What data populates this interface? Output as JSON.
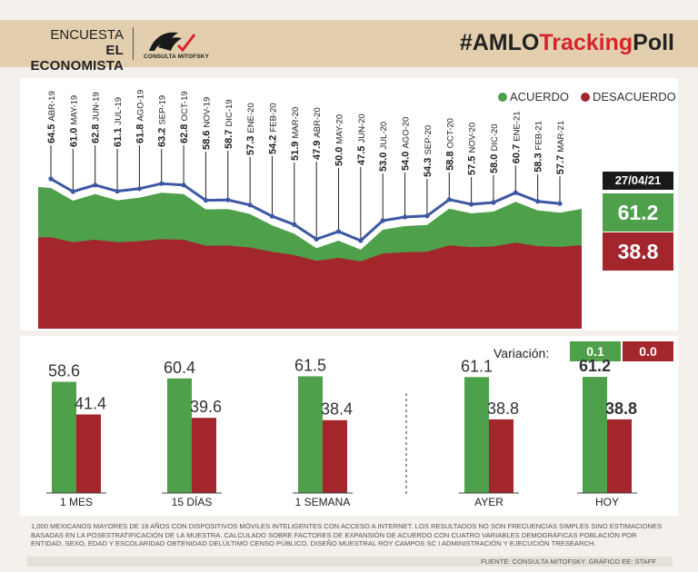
{
  "header": {
    "brand_line1": "ENCUESTA",
    "brand_line2": "EL ECONOMISTA",
    "logo_text": "CONSULTA MITOFSKY",
    "hashtag_prefix": "#AMLO",
    "hashtag_red": "Tracking",
    "hashtag_suffix": "Poll"
  },
  "legend": {
    "acuerdo": "ACUERDO",
    "desacuerdo": "DESACUERDO"
  },
  "colors": {
    "green": "#4fa04b",
    "red": "#a3262c",
    "line": "#3d57a3",
    "header_bg": "#e3cfae"
  },
  "current": {
    "date": "27/04/21",
    "acuerdo": "61.2",
    "desacuerdo": "38.8"
  },
  "variation": {
    "label": "Variación:",
    "acuerdo": "0.1",
    "desacuerdo": "0.0"
  },
  "chart_data": [
    {
      "type": "line",
      "series": [
        {
          "name": "ACUERDO",
          "points": [
            {
              "x": "ABR-19",
              "y": 64.5
            },
            {
              "x": "MAY-19",
              "y": 61.0
            },
            {
              "x": "JUN-19",
              "y": 62.8
            },
            {
              "x": "JUL-19",
              "y": 61.1
            },
            {
              "x": "AGO-19",
              "y": 61.8
            },
            {
              "x": "SEP-19",
              "y": 63.2
            },
            {
              "x": "OCT-19",
              "y": 62.8
            },
            {
              "x": "NOV-19",
              "y": 58.6
            },
            {
              "x": "DIC-19",
              "y": 58.7
            },
            {
              "x": "ENE-20",
              "y": 57.3
            },
            {
              "x": "FEB-20",
              "y": 54.2
            },
            {
              "x": "MAR-20",
              "y": 51.9
            },
            {
              "x": "ABR-20",
              "y": 47.9
            },
            {
              "x": "MAY-20",
              "y": 50.0
            },
            {
              "x": "JUN-20",
              "y": 47.5
            },
            {
              "x": "JUL-20",
              "y": 53.0
            },
            {
              "x": "AGO-20",
              "y": 54.0
            },
            {
              "x": "SEP-20",
              "y": 54.3
            },
            {
              "x": "OCT-20",
              "y": 58.8
            },
            {
              "x": "NOV-20",
              "y": 57.5
            },
            {
              "x": "DIC-20",
              "y": 58.0
            },
            {
              "x": "ENE-21",
              "y": 60.7
            },
            {
              "x": "FEB-21",
              "y": 58.3
            },
            {
              "x": "MAR-21",
              "y": 57.7
            }
          ]
        }
      ]
    },
    {
      "type": "bar",
      "categories": [
        "1 MES",
        "15 DÍAS",
        "1 SEMANA",
        "AYER",
        "HOY"
      ],
      "series": [
        {
          "name": "ACUERDO",
          "values": [
            58.6,
            60.4,
            61.5,
            61.1,
            61.2
          ]
        },
        {
          "name": "DESACUERDO",
          "values": [
            41.4,
            39.6,
            38.4,
            38.8,
            38.8
          ]
        }
      ],
      "ylim": [
        0,
        100
      ]
    }
  ],
  "footnote": "1,000 MEXICANOS MAYORES DE 18 AÑOS CON DISPOSITIVOS MÓVILES INTELIGENTES CON ACCESO A INTERNET. LOS RESULTADOS NO SON FRECUENCIAS SIMPLES SINO ESTIMACIONES BASADAS EN LA POSESTRATIFICACIÓN DE LA MUESTRA. CALCULADO SOBRE FACTORES DE EXPANSIÓN DE ACUERDO CON CUATRO VARIABLES DEMOGRÁFICAS POBLACIÓN POR ENTIDAD, SEXO, EDAD Y ESCOLARIDAD OBTENIDAD DELÚLTIMO CENSO PÚBLICO. DISEÑO MUESTRAL ROY CAMPOS SC I ADMINISTRACIÓN Y EJECUCIÓN TRESEARCH.",
  "source": "FUENTE: CONSULTA MITOFSKY. GRÁFICO EE: STAFF"
}
